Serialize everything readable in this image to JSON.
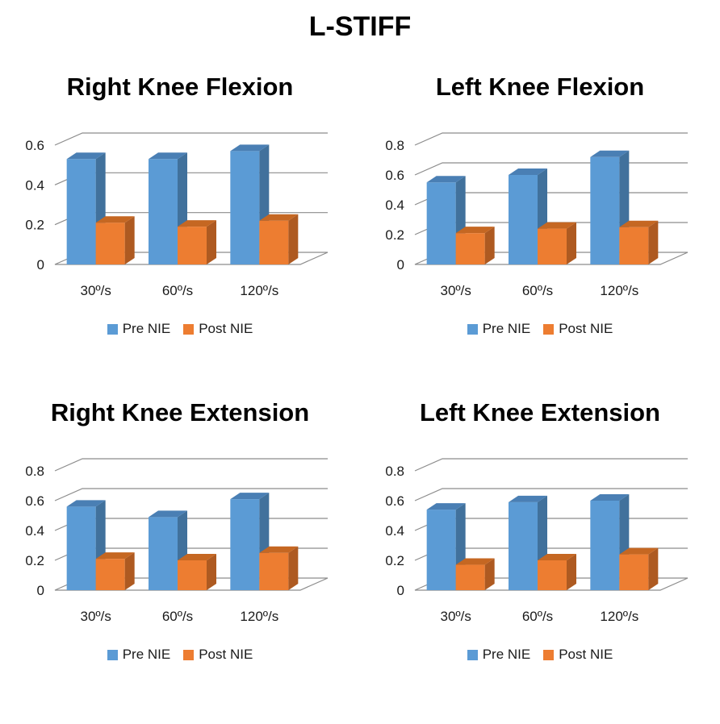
{
  "title": "L-STIFF",
  "colors": {
    "pre": "#5B9BD5",
    "pre_side": "#41719C",
    "pre_top": "#4A7FB4",
    "post": "#ED7D31",
    "post_side": "#AE5A21",
    "post_top": "#C56722",
    "grid": "#8c8c8c"
  },
  "chart_data": [
    {
      "type": "bar",
      "title": "Right Knee Flexion",
      "categories": [
        "30º/s",
        "60º/s",
        "120º/s"
      ],
      "series": [
        {
          "name": "Pre NIE",
          "values": [
            0.53,
            0.53,
            0.57
          ]
        },
        {
          "name": "Post NIE",
          "values": [
            0.21,
            0.19,
            0.22
          ]
        }
      ],
      "yticks": [
        "0",
        "0.2",
        "0.4",
        "0.6"
      ],
      "ylim": [
        0,
        0.6
      ],
      "legend": "bottom"
    },
    {
      "type": "bar",
      "title": "Left Knee Flexion",
      "categories": [
        "30º/s",
        "60º/s",
        "120º/s"
      ],
      "series": [
        {
          "name": "Pre NIE",
          "values": [
            0.55,
            0.6,
            0.72
          ]
        },
        {
          "name": "Post NIE",
          "values": [
            0.21,
            0.24,
            0.25
          ]
        }
      ],
      "yticks": [
        "0",
        "0.2",
        "0.4",
        "0.6",
        "0.8"
      ],
      "ylim": [
        0,
        0.8
      ],
      "legend": "bottom"
    },
    {
      "type": "bar",
      "title": "Right Knee Extension",
      "categories": [
        "30º/s",
        "60º/s",
        "120º/s"
      ],
      "series": [
        {
          "name": "Pre NIE",
          "values": [
            0.56,
            0.49,
            0.61
          ]
        },
        {
          "name": "Post NIE",
          "values": [
            0.21,
            0.2,
            0.25
          ]
        }
      ],
      "yticks": [
        "0",
        "0.2",
        "0.4",
        "0.6",
        "0.8"
      ],
      "ylim": [
        0,
        0.8
      ],
      "legend": "bottom"
    },
    {
      "type": "bar",
      "title": "Left Knee Extension",
      "categories": [
        "30º/s",
        "60º/s",
        "120º/s"
      ],
      "series": [
        {
          "name": "Pre NIE",
          "values": [
            0.54,
            0.59,
            0.6
          ]
        },
        {
          "name": "Post NIE",
          "values": [
            0.17,
            0.2,
            0.24
          ]
        }
      ],
      "yticks": [
        "0",
        "0.2",
        "0.4",
        "0.6",
        "0.8"
      ],
      "ylim": [
        0,
        0.8
      ],
      "legend": "bottom"
    }
  ]
}
